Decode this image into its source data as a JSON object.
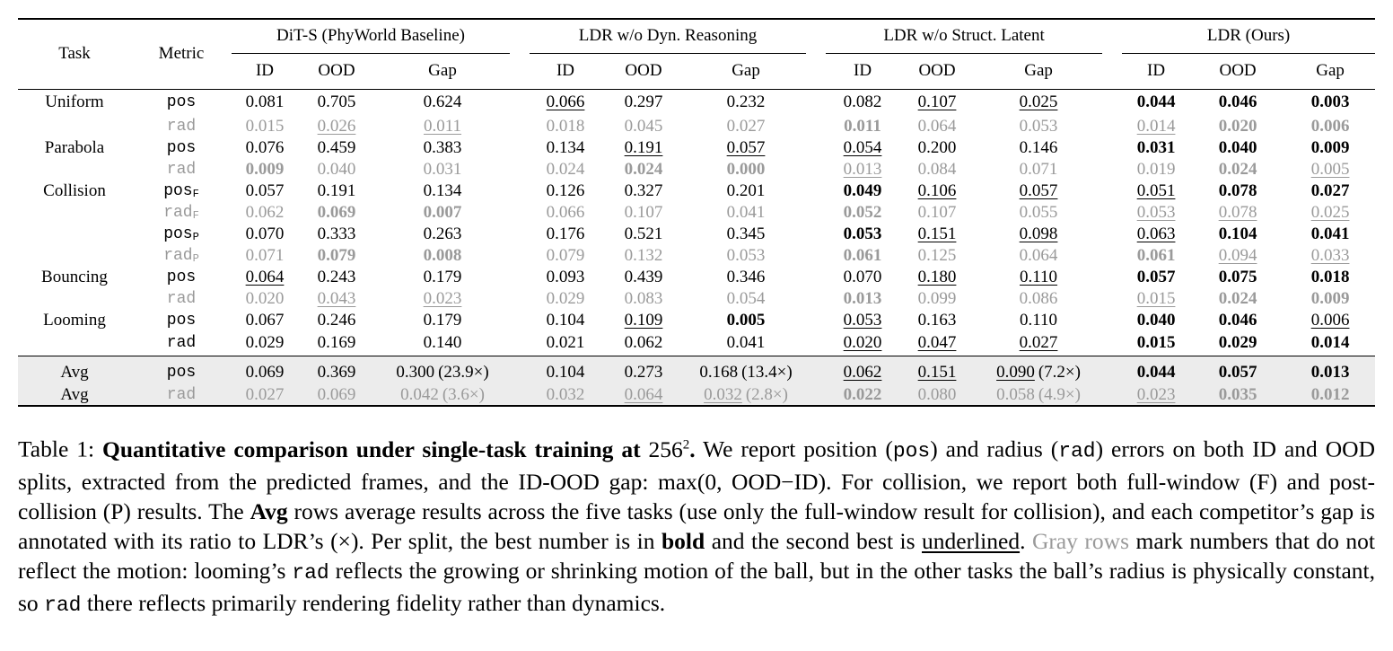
{
  "table": {
    "header": {
      "task": "Task",
      "metric": "Metric",
      "groups": [
        "DiT-S (PhyWorld Baseline)",
        "LDR w/o Dyn. Reasoning",
        "LDR w/o Struct. Latent",
        "LDR (Ours)"
      ],
      "subcols": [
        "ID",
        "OOD",
        "Gap"
      ]
    },
    "rows": [
      {
        "task": "Uniform",
        "metric": "pos",
        "sub": "",
        "gray": false,
        "avg": false,
        "cells": [
          {
            "v": "0.081"
          },
          {
            "v": "0.705"
          },
          {
            "v": "0.624"
          },
          {
            "v": "0.066",
            "u": true
          },
          {
            "v": "0.297"
          },
          {
            "v": "0.232"
          },
          {
            "v": "0.082"
          },
          {
            "v": "0.107",
            "u": true
          },
          {
            "v": "0.025",
            "u": true
          },
          {
            "v": "0.044",
            "b": true
          },
          {
            "v": "0.046",
            "b": true
          },
          {
            "v": "0.003",
            "b": true
          }
        ]
      },
      {
        "task": "",
        "metric": "rad",
        "sub": "",
        "gray": true,
        "avg": false,
        "cells": [
          {
            "v": "0.015"
          },
          {
            "v": "0.026",
            "u": true
          },
          {
            "v": "0.011",
            "u": true
          },
          {
            "v": "0.018"
          },
          {
            "v": "0.045"
          },
          {
            "v": "0.027"
          },
          {
            "v": "0.011",
            "b": true
          },
          {
            "v": "0.064"
          },
          {
            "v": "0.053"
          },
          {
            "v": "0.014",
            "u": true
          },
          {
            "v": "0.020",
            "b": true
          },
          {
            "v": "0.006",
            "b": true
          }
        ]
      },
      {
        "task": "Parabola",
        "metric": "pos",
        "sub": "",
        "gray": false,
        "avg": false,
        "cells": [
          {
            "v": "0.076"
          },
          {
            "v": "0.459"
          },
          {
            "v": "0.383"
          },
          {
            "v": "0.134"
          },
          {
            "v": "0.191",
            "u": true
          },
          {
            "v": "0.057",
            "u": true
          },
          {
            "v": "0.054",
            "u": true
          },
          {
            "v": "0.200"
          },
          {
            "v": "0.146"
          },
          {
            "v": "0.031",
            "b": true
          },
          {
            "v": "0.040",
            "b": true
          },
          {
            "v": "0.009",
            "b": true
          }
        ]
      },
      {
        "task": "",
        "metric": "rad",
        "sub": "",
        "gray": true,
        "avg": false,
        "cells": [
          {
            "v": "0.009",
            "b": true
          },
          {
            "v": "0.040"
          },
          {
            "v": "0.031"
          },
          {
            "v": "0.024"
          },
          {
            "v": "0.024",
            "b": true
          },
          {
            "v": "0.000",
            "b": true
          },
          {
            "v": "0.013",
            "u": true
          },
          {
            "v": "0.084"
          },
          {
            "v": "0.071"
          },
          {
            "v": "0.019"
          },
          {
            "v": "0.024",
            "b": true
          },
          {
            "v": "0.005",
            "u": true
          }
        ]
      },
      {
        "task": "Collision",
        "metric": "pos",
        "sub": "F",
        "gray": false,
        "avg": false,
        "cells": [
          {
            "v": "0.057"
          },
          {
            "v": "0.191"
          },
          {
            "v": "0.134"
          },
          {
            "v": "0.126"
          },
          {
            "v": "0.327"
          },
          {
            "v": "0.201"
          },
          {
            "v": "0.049",
            "b": true
          },
          {
            "v": "0.106",
            "u": true
          },
          {
            "v": "0.057",
            "u": true
          },
          {
            "v": "0.051",
            "u": true
          },
          {
            "v": "0.078",
            "b": true
          },
          {
            "v": "0.027",
            "b": true
          }
        ]
      },
      {
        "task": "",
        "metric": "rad",
        "sub": "F",
        "gray": true,
        "avg": false,
        "cells": [
          {
            "v": "0.062"
          },
          {
            "v": "0.069",
            "b": true
          },
          {
            "v": "0.007",
            "b": true
          },
          {
            "v": "0.066"
          },
          {
            "v": "0.107"
          },
          {
            "v": "0.041"
          },
          {
            "v": "0.052",
            "b": true
          },
          {
            "v": "0.107"
          },
          {
            "v": "0.055"
          },
          {
            "v": "0.053",
            "u": true
          },
          {
            "v": "0.078",
            "u": true
          },
          {
            "v": "0.025",
            "u": true
          }
        ]
      },
      {
        "task": "",
        "metric": "pos",
        "sub": "P",
        "gray": false,
        "avg": false,
        "cells": [
          {
            "v": "0.070"
          },
          {
            "v": "0.333"
          },
          {
            "v": "0.263"
          },
          {
            "v": "0.176"
          },
          {
            "v": "0.521"
          },
          {
            "v": "0.345"
          },
          {
            "v": "0.053",
            "b": true
          },
          {
            "v": "0.151",
            "u": true
          },
          {
            "v": "0.098",
            "u": true
          },
          {
            "v": "0.063",
            "u": true
          },
          {
            "v": "0.104",
            "b": true
          },
          {
            "v": "0.041",
            "b": true
          }
        ]
      },
      {
        "task": "",
        "metric": "rad",
        "sub": "P",
        "gray": true,
        "avg": false,
        "cells": [
          {
            "v": "0.071"
          },
          {
            "v": "0.079",
            "b": true
          },
          {
            "v": "0.008",
            "b": true
          },
          {
            "v": "0.079"
          },
          {
            "v": "0.132"
          },
          {
            "v": "0.053"
          },
          {
            "v": "0.061",
            "b": true
          },
          {
            "v": "0.125"
          },
          {
            "v": "0.064"
          },
          {
            "v": "0.061",
            "b": true
          },
          {
            "v": "0.094",
            "u": true
          },
          {
            "v": "0.033",
            "u": true
          }
        ]
      },
      {
        "task": "Bouncing",
        "metric": "pos",
        "sub": "",
        "gray": false,
        "avg": false,
        "cells": [
          {
            "v": "0.064",
            "u": true
          },
          {
            "v": "0.243"
          },
          {
            "v": "0.179"
          },
          {
            "v": "0.093"
          },
          {
            "v": "0.439"
          },
          {
            "v": "0.346"
          },
          {
            "v": "0.070"
          },
          {
            "v": "0.180",
            "u": true
          },
          {
            "v": "0.110",
            "u": true
          },
          {
            "v": "0.057",
            "b": true
          },
          {
            "v": "0.075",
            "b": true
          },
          {
            "v": "0.018",
            "b": true
          }
        ]
      },
      {
        "task": "",
        "metric": "rad",
        "sub": "",
        "gray": true,
        "avg": false,
        "cells": [
          {
            "v": "0.020"
          },
          {
            "v": "0.043",
            "u": true
          },
          {
            "v": "0.023",
            "u": true
          },
          {
            "v": "0.029"
          },
          {
            "v": "0.083"
          },
          {
            "v": "0.054"
          },
          {
            "v": "0.013",
            "b": true
          },
          {
            "v": "0.099"
          },
          {
            "v": "0.086"
          },
          {
            "v": "0.015",
            "u": true
          },
          {
            "v": "0.024",
            "b": true
          },
          {
            "v": "0.009",
            "b": true
          }
        ]
      },
      {
        "task": "Looming",
        "metric": "pos",
        "sub": "",
        "gray": false,
        "avg": false,
        "cells": [
          {
            "v": "0.067"
          },
          {
            "v": "0.246"
          },
          {
            "v": "0.179"
          },
          {
            "v": "0.104"
          },
          {
            "v": "0.109",
            "u": true
          },
          {
            "v": "0.005",
            "b": true
          },
          {
            "v": "0.053",
            "u": true
          },
          {
            "v": "0.163"
          },
          {
            "v": "0.110"
          },
          {
            "v": "0.040",
            "b": true
          },
          {
            "v": "0.046",
            "b": true
          },
          {
            "v": "0.006",
            "u": true
          }
        ]
      },
      {
        "task": "",
        "metric": "rad",
        "sub": "",
        "gray": false,
        "avg": false,
        "cells": [
          {
            "v": "0.029"
          },
          {
            "v": "0.169"
          },
          {
            "v": "0.140"
          },
          {
            "v": "0.021"
          },
          {
            "v": "0.062"
          },
          {
            "v": "0.041"
          },
          {
            "v": "0.020",
            "u": true
          },
          {
            "v": "0.047",
            "u": true
          },
          {
            "v": "0.027",
            "u": true
          },
          {
            "v": "0.015",
            "b": true
          },
          {
            "v": "0.029",
            "b": true
          },
          {
            "v": "0.014",
            "b": true
          }
        ]
      },
      {
        "task": "Avg",
        "metric": "pos",
        "sub": "",
        "gray": false,
        "avg": true,
        "cells": [
          {
            "v": "0.069"
          },
          {
            "v": "0.369"
          },
          {
            "v": "0.300",
            "r": "(23.9×)"
          },
          {
            "v": "0.104"
          },
          {
            "v": "0.273"
          },
          {
            "v": "0.168",
            "r": "(13.4×)"
          },
          {
            "v": "0.062",
            "u": true
          },
          {
            "v": "0.151",
            "u": true
          },
          {
            "v": "0.090",
            "u": true,
            "r": "(7.2×)"
          },
          {
            "v": "0.044",
            "b": true
          },
          {
            "v": "0.057",
            "b": true
          },
          {
            "v": "0.013",
            "b": true
          }
        ]
      },
      {
        "task": "Avg",
        "metric": "rad",
        "sub": "",
        "gray": true,
        "avg": true,
        "cells": [
          {
            "v": "0.027"
          },
          {
            "v": "0.069"
          },
          {
            "v": "0.042",
            "r": "(3.6×)"
          },
          {
            "v": "0.032"
          },
          {
            "v": "0.064",
            "u": true
          },
          {
            "v": "0.032",
            "u": true,
            "r": "(2.8×)"
          },
          {
            "v": "0.022",
            "b": true
          },
          {
            "v": "0.080"
          },
          {
            "v": "0.058",
            "r": "(4.9×)"
          },
          {
            "v": "0.023",
            "u": true
          },
          {
            "v": "0.035",
            "b": true
          },
          {
            "v": "0.012",
            "b": true
          }
        ]
      }
    ]
  },
  "caption": {
    "label": "Table 1: ",
    "title": "Quantitative comparison under single-task training at ",
    "title_math": "256",
    "title_sup": "2",
    "title_end": ".",
    "t1": " We report position (",
    "m_pos": "pos",
    "t2": ") and radius (",
    "m_rad": "rad",
    "t3": ") errors on both ID and OOD splits, extracted from the predicted frames, and the ID-OOD gap: ",
    "formula": "max(0, OOD−ID)",
    "t4": ". For collision, we report both full-window (F) and post-collision (P) results. The ",
    "avg_word": "Avg",
    "t5": " rows average results across the five tasks (use only the full-window result for collision), and each competitor’s gap is annotated with its ratio to LDR’s (×). Per split, the best number is in ",
    "bold_word": "bold",
    "t6": " and the second best is ",
    "underlined_word": "underlined",
    "t7": ". ",
    "gray_rows": "Gray rows",
    "t8": " mark numbers that do not reflect the motion: looming’s ",
    "m_rad2": "rad",
    "t9": " reflects the growing or shrinking motion of the ball, but in the other tasks the ball’s radius is physically constant, so ",
    "m_rad3": "rad",
    "t10": " there reflects primarily rendering fidelity rather than dynamics."
  },
  "colors": {
    "gray_text": "#9a9a9a",
    "avg_bg": "#ececec"
  }
}
